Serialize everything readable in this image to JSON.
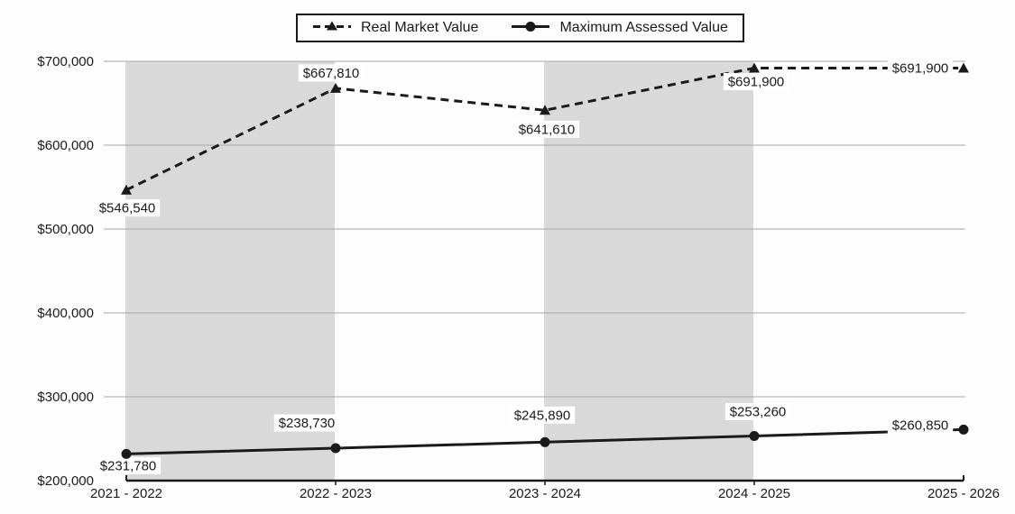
{
  "page": {
    "background": "#fdfdfd"
  },
  "legend": {
    "items": [
      {
        "label": "Real Market Value",
        "marker": "dashed-line-triangle-icon"
      },
      {
        "label": "Maximum Assessed Value",
        "marker": "solid-line-circle-icon"
      }
    ]
  },
  "chart_data": {
    "type": "line",
    "title": "",
    "xlabel": "",
    "ylabel": "",
    "categories": [
      "2021 - 2022",
      "2022 - 2023",
      "2023 - 2024",
      "2024 - 2025",
      "2025 - 2026"
    ],
    "series": [
      {
        "name": "Real Market Value",
        "line_style": "dashed",
        "marker": "triangle",
        "color": "#1a1a1a",
        "values": [
          546540,
          667810,
          641610,
          691900,
          691900
        ],
        "data_labels": [
          "$546,540",
          "$667,810",
          "$641,610",
          "$691,900",
          "$691,900"
        ],
        "label_offsets": [
          [
            1,
            20
          ],
          [
            -5,
            -17
          ],
          [
            2,
            21
          ],
          [
            2,
            15
          ],
          [
            -48,
            0
          ]
        ]
      },
      {
        "name": "Maximum Assessed Value",
        "line_style": "solid",
        "marker": "circle",
        "color": "#1a1a1a",
        "values": [
          231780,
          238730,
          245890,
          253260,
          260850
        ],
        "data_labels": [
          "$231,780",
          "$238,730",
          "$245,890",
          "$253,260",
          "$260,850"
        ],
        "label_offsets": [
          [
            2,
            13
          ],
          [
            -32,
            -28
          ],
          [
            -3,
            -30
          ],
          [
            4,
            -27
          ],
          [
            -48,
            -5
          ]
        ]
      }
    ],
    "ylim": [
      200000,
      700000
    ],
    "ytick_step": 100000,
    "ytick_labels": [
      "$200,000",
      "$300,000",
      "$400,000",
      "$500,000",
      "$600,000",
      "$700,000"
    ],
    "grid": "horizontal",
    "gridline_color": "#a8a8a8",
    "axis_color": "#1a1a1a",
    "legend_position": "top-center",
    "plot_bands": {
      "color": "#d9d9d9",
      "between_categories": [
        [
          0,
          1
        ],
        [
          2,
          3
        ]
      ]
    }
  }
}
